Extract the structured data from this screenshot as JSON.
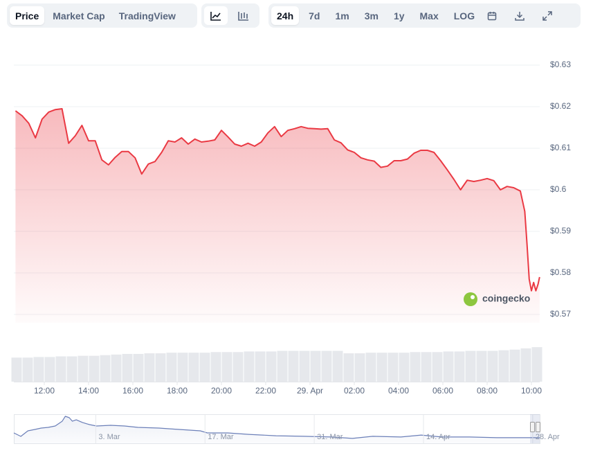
{
  "toolbar": {
    "chart_types": [
      "Price",
      "Market Cap",
      "TradingView"
    ],
    "ranges": [
      "24h",
      "7d",
      "1m",
      "3m",
      "1y",
      "Max",
      "LOG"
    ]
  },
  "watermark": "coingecko",
  "chart_data": [
    {
      "type": "line",
      "color": "#ea3943",
      "xlim": [
        10.625,
        34.375
      ],
      "xticks": [
        {
          "value": 12,
          "label": "12:00"
        },
        {
          "value": 14,
          "label": "14:00"
        },
        {
          "value": 16,
          "label": "16:00"
        },
        {
          "value": 18,
          "label": "18:00"
        },
        {
          "value": 20,
          "label": "20:00"
        },
        {
          "value": 22,
          "label": "22:00"
        },
        {
          "value": 24,
          "label": "29. Apr"
        },
        {
          "value": 26,
          "label": "02:00"
        },
        {
          "value": 28,
          "label": "04:00"
        },
        {
          "value": 30,
          "label": "06:00"
        },
        {
          "value": 32,
          "label": "08:00"
        },
        {
          "value": 34,
          "label": "10:00"
        }
      ],
      "ylim": [
        0.57,
        0.63
      ],
      "yticks": [
        {
          "value": 0.57,
          "label": "$0.57"
        },
        {
          "value": 0.58,
          "label": "$0.58"
        },
        {
          "value": 0.59,
          "label": "$0.59"
        },
        {
          "value": 0.6,
          "label": "$0.6"
        },
        {
          "value": 0.61,
          "label": "$0.61"
        },
        {
          "value": 0.62,
          "label": "$0.62"
        },
        {
          "value": 0.63,
          "label": "$0.63"
        }
      ],
      "grid": true,
      "x": [
        10.7,
        11.0,
        11.3,
        11.6,
        11.9,
        12.2,
        12.5,
        12.8,
        13.1,
        13.4,
        13.7,
        14.0,
        14.3,
        14.6,
        14.9,
        15.2,
        15.5,
        15.8,
        16.1,
        16.4,
        16.7,
        17.0,
        17.3,
        17.6,
        17.9,
        18.2,
        18.5,
        18.8,
        19.1,
        19.4,
        19.7,
        20.0,
        20.3,
        20.6,
        20.9,
        21.2,
        21.5,
        21.8,
        22.1,
        22.4,
        22.7,
        23.0,
        23.3,
        23.6,
        23.9,
        24.2,
        24.5,
        24.8,
        25.1,
        25.4,
        25.7,
        26.0,
        26.3,
        26.6,
        26.9,
        27.2,
        27.5,
        27.8,
        28.1,
        28.4,
        28.7,
        29.0,
        29.3,
        29.6,
        29.9,
        30.2,
        30.5,
        30.8,
        31.1,
        31.4,
        31.7,
        32.0,
        32.3,
        32.6,
        32.9,
        33.2,
        33.5,
        33.7,
        33.8,
        33.9,
        34.0,
        34.1,
        34.2,
        34.3,
        34.37
      ],
      "values": [
        0.619,
        0.6178,
        0.616,
        0.6125,
        0.617,
        0.6187,
        0.6193,
        0.6195,
        0.6112,
        0.613,
        0.6155,
        0.6118,
        0.6118,
        0.6072,
        0.606,
        0.6078,
        0.6092,
        0.6092,
        0.6077,
        0.6038,
        0.6062,
        0.6068,
        0.609,
        0.6118,
        0.6115,
        0.6125,
        0.611,
        0.6122,
        0.6115,
        0.6117,
        0.612,
        0.6143,
        0.6127,
        0.611,
        0.6105,
        0.6112,
        0.6105,
        0.6115,
        0.6137,
        0.6152,
        0.6128,
        0.6143,
        0.6147,
        0.6152,
        0.6148,
        0.6147,
        0.6146,
        0.6147,
        0.612,
        0.6113,
        0.6096,
        0.609,
        0.6077,
        0.6072,
        0.6069,
        0.6054,
        0.6057,
        0.607,
        0.607,
        0.6074,
        0.6088,
        0.6095,
        0.6095,
        0.609,
        0.607,
        0.6048,
        0.6025,
        0.6,
        0.6023,
        0.602,
        0.6023,
        0.6027,
        0.6022,
        0.6,
        0.6008,
        0.6005,
        0.5997,
        0.5948,
        0.587,
        0.5785,
        0.5757,
        0.5777,
        0.5757,
        0.5773,
        0.579
      ]
    },
    {
      "type": "bar",
      "color": "#e6e8ec",
      "ylim": [
        0,
        100
      ],
      "x": [
        10.75,
        11.25,
        11.75,
        12.25,
        12.75,
        13.25,
        13.75,
        14.25,
        14.75,
        15.25,
        15.75,
        16.25,
        16.75,
        17.25,
        17.75,
        18.25,
        18.75,
        19.25,
        19.75,
        20.25,
        20.75,
        21.25,
        21.75,
        22.25,
        22.75,
        23.25,
        23.75,
        24.25,
        24.75,
        25.25,
        25.75,
        26.25,
        26.75,
        27.25,
        27.75,
        28.25,
        28.75,
        29.25,
        29.75,
        30.25,
        30.75,
        31.25,
        31.75,
        32.25,
        32.75,
        33.25,
        33.75,
        34.25
      ],
      "values": [
        39,
        39,
        40,
        40,
        41,
        41,
        42,
        42,
        43,
        44,
        45,
        45,
        46,
        46,
        47,
        47,
        47,
        47,
        48,
        48,
        48,
        49,
        49,
        49,
        50,
        50,
        50,
        50,
        50,
        50,
        46,
        46,
        47,
        47,
        47,
        47,
        48,
        48,
        48,
        49,
        49,
        50,
        50,
        50,
        51,
        52,
        54,
        56
      ]
    },
    {
      "type": "line",
      "color": "#6b7fb8",
      "xlim": [
        3.5,
        70.9
      ],
      "ylim": [
        0.53,
        0.78
      ],
      "xticks": [
        {
          "value": 14,
          "label": "3. Mar"
        },
        {
          "value": 28,
          "label": "17. Mar"
        },
        {
          "value": 42,
          "label": "31. Mar"
        },
        {
          "value": 56,
          "label": "14. Apr"
        },
        {
          "value": 70,
          "label": "28. Apr"
        }
      ],
      "x": [
        3.5,
        4.4,
        5.3,
        6.2,
        7.0,
        7.9,
        8.8,
        9.7,
        10.1,
        10.6,
        11.0,
        11.5,
        12.3,
        13.2,
        14.1,
        15.9,
        17.7,
        19.4,
        22.1,
        24.7,
        27.4,
        28.3,
        30.9,
        33.6,
        37.1,
        40.7,
        44.2,
        46.9,
        49.5,
        53.1,
        55.7,
        58.4,
        61.9,
        65.4,
        70.9
      ],
      "values": [
        0.619,
        0.5895,
        0.637,
        0.649,
        0.661,
        0.667,
        0.679,
        0.72,
        0.762,
        0.75,
        0.72,
        0.732,
        0.709,
        0.691,
        0.679,
        0.685,
        0.679,
        0.667,
        0.661,
        0.649,
        0.637,
        0.619,
        0.619,
        0.607,
        0.595,
        0.59,
        0.584,
        0.572,
        0.59,
        0.584,
        0.601,
        0.584,
        0.584,
        0.578,
        0.578
      ]
    }
  ]
}
